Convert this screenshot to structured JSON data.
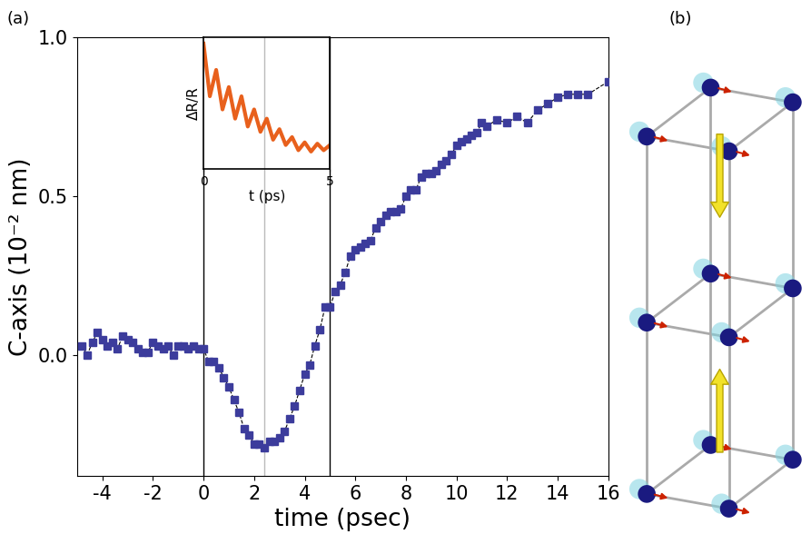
{
  "panel_labels": [
    "(a)",
    "(b)"
  ],
  "chart_data": [
    {
      "type": "line",
      "xlabel": "time (psec)",
      "ylabel": "C-axis (10⁻² nm)",
      "x": [
        -4.8,
        -4.6,
        -4.4,
        -4.2,
        -4.0,
        -3.8,
        -3.6,
        -3.4,
        -3.2,
        -3.0,
        -2.8,
        -2.6,
        -2.4,
        -2.2,
        -2.0,
        -1.8,
        -1.6,
        -1.4,
        -1.2,
        -1.0,
        -0.8,
        -0.6,
        -0.4,
        -0.2,
        0.0,
        0.2,
        0.4,
        0.6,
        0.8,
        1.0,
        1.2,
        1.4,
        1.6,
        1.8,
        2.0,
        2.2,
        2.4,
        2.6,
        2.8,
        3.0,
        3.2,
        3.4,
        3.6,
        3.8,
        4.0,
        4.2,
        4.4,
        4.6,
        4.8,
        5.0,
        5.2,
        5.4,
        5.6,
        5.8,
        6.0,
        6.2,
        6.4,
        6.6,
        6.8,
        7.0,
        7.2,
        7.4,
        7.6,
        7.8,
        8.0,
        8.2,
        8.4,
        8.6,
        8.8,
        9.0,
        9.2,
        9.4,
        9.6,
        9.8,
        10.0,
        10.2,
        10.4,
        10.6,
        10.8,
        11.0,
        11.2,
        11.6,
        12.0,
        12.4,
        12.8,
        13.2,
        13.6,
        14.0,
        14.4,
        14.8,
        15.2,
        16.0
      ],
      "values": [
        0.03,
        0.0,
        0.04,
        0.07,
        0.05,
        0.03,
        0.04,
        0.02,
        0.06,
        0.05,
        0.04,
        0.02,
        0.01,
        0.01,
        0.04,
        0.03,
        0.02,
        0.03,
        0.0,
        0.03,
        0.03,
        0.02,
        0.03,
        0.02,
        0.02,
        -0.02,
        -0.02,
        -0.04,
        -0.07,
        -0.1,
        -0.14,
        -0.18,
        -0.23,
        -0.25,
        -0.28,
        -0.28,
        -0.29,
        -0.27,
        -0.27,
        -0.26,
        -0.24,
        -0.2,
        -0.16,
        -0.11,
        -0.06,
        -0.03,
        0.03,
        0.08,
        0.15,
        0.15,
        0.2,
        0.22,
        0.26,
        0.31,
        0.33,
        0.34,
        0.35,
        0.36,
        0.4,
        0.42,
        0.44,
        0.45,
        0.45,
        0.46,
        0.5,
        0.52,
        0.52,
        0.56,
        0.57,
        0.57,
        0.58,
        0.6,
        0.61,
        0.63,
        0.66,
        0.67,
        0.68,
        0.69,
        0.7,
        0.73,
        0.72,
        0.74,
        0.73,
        0.75,
        0.73,
        0.77,
        0.79,
        0.81,
        0.82,
        0.82,
        0.82,
        0.86
      ],
      "color": "#3c3c9c",
      "marker": "square",
      "line_style": "dashed",
      "xlim": [
        -5,
        16
      ],
      "xticks": [
        -4,
        -2,
        0,
        2,
        4,
        6,
        8,
        10,
        12,
        14,
        16
      ],
      "ylim": [
        -0.38,
        1.0
      ],
      "yticks": [
        {
          "value": 0.0,
          "label": "0.0"
        },
        {
          "value": 0.5,
          "label": "0.5"
        },
        {
          "value": 1.0,
          "label": "1.0"
        }
      ]
    },
    {
      "type": "line",
      "xlabel": "t (ps)",
      "ylabel": "ΔR/R",
      "x": [
        0.0,
        0.25,
        0.5,
        0.75,
        1.0,
        1.25,
        1.5,
        1.75,
        2.0,
        2.25,
        2.5,
        2.75,
        3.0,
        3.25,
        3.5,
        3.75,
        4.0,
        4.25,
        4.5,
        4.75,
        5.0
      ],
      "values": [
        0.95,
        0.55,
        0.75,
        0.45,
        0.62,
        0.38,
        0.55,
        0.32,
        0.45,
        0.28,
        0.38,
        0.22,
        0.3,
        0.18,
        0.24,
        0.14,
        0.2,
        0.13,
        0.19,
        0.14,
        0.18
      ],
      "color": "#e8601c",
      "xlim": [
        0,
        5
      ],
      "xticks": [
        0,
        5
      ],
      "ylim": [
        0,
        1
      ],
      "tick_labels": "x"
    }
  ]
}
